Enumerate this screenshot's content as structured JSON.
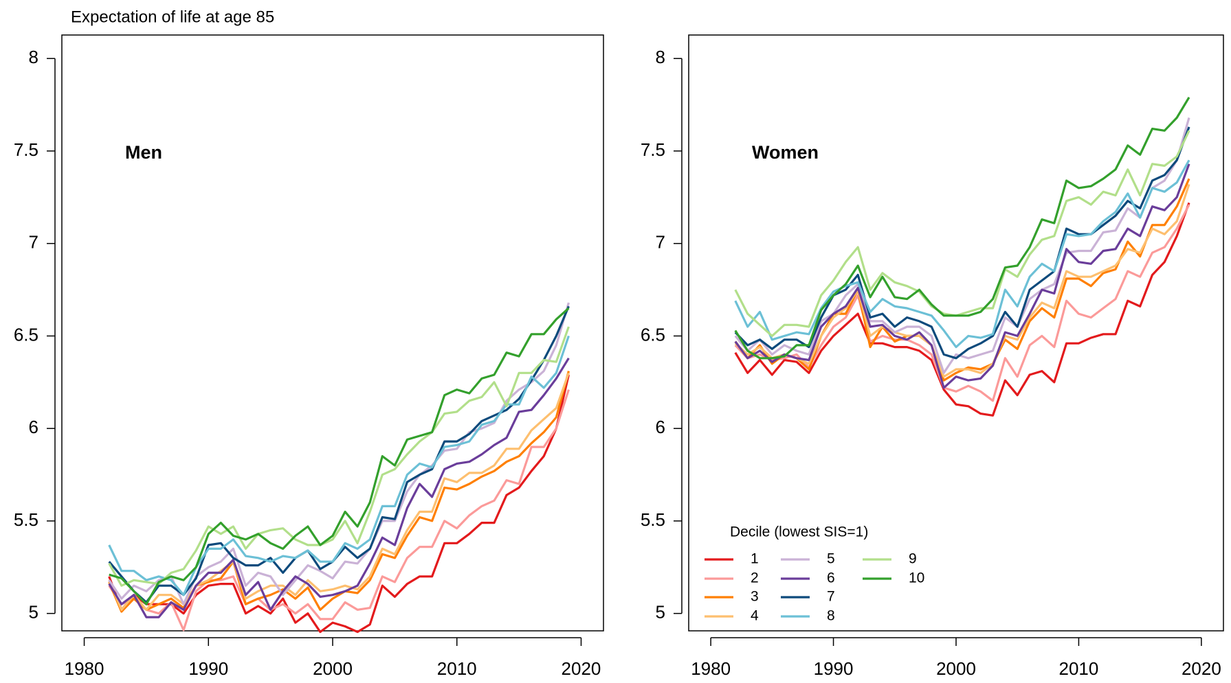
{
  "chart_data": [
    {
      "type": "line",
      "title": "Expectation of life at age 85",
      "panel_label": "Men",
      "x": [
        1982,
        1983,
        1984,
        1985,
        1986,
        1987,
        1988,
        1989,
        1990,
        1991,
        1992,
        1993,
        1994,
        1995,
        1996,
        1997,
        1998,
        1999,
        2000,
        2001,
        2002,
        2003,
        2004,
        2005,
        2006,
        2007,
        2008,
        2009,
        2010,
        2011,
        2012,
        2013,
        2014,
        2015,
        2016,
        2017,
        2018,
        2019
      ],
      "xlim": [
        1978.2,
        2021.8
      ],
      "ylim": [
        4.906,
        8.127
      ],
      "xticks": [
        1980,
        1990,
        2000,
        2010,
        2020
      ],
      "yticks": [
        5,
        5.5,
        6,
        6.5,
        7,
        7.5,
        8
      ],
      "series": [
        {
          "name": "1",
          "color": "#e31a1c",
          "values": [
            5.2,
            5.02,
            5.1,
            5.05,
            5.05,
            5.05,
            5.0,
            5.1,
            5.15,
            5.16,
            5.16,
            5.0,
            5.04,
            5.0,
            5.08,
            4.95,
            5.0,
            4.9,
            4.95,
            4.93,
            4.9,
            4.94,
            5.15,
            5.09,
            5.16,
            5.2,
            5.2,
            5.38,
            5.38,
            5.43,
            5.49,
            5.49,
            5.64,
            5.68,
            5.77,
            5.85,
            6.0,
            6.29
          ]
        },
        {
          "name": "2",
          "color": "#fb9a99",
          "values": [
            5.15,
            5.05,
            5.08,
            5.02,
            5.0,
            5.06,
            4.91,
            5.12,
            5.18,
            5.18,
            5.2,
            5.05,
            5.08,
            5.02,
            5.05,
            5.0,
            5.05,
            4.97,
            4.97,
            5.06,
            5.02,
            5.03,
            5.2,
            5.17,
            5.3,
            5.36,
            5.36,
            5.5,
            5.46,
            5.53,
            5.58,
            5.61,
            5.72,
            5.7,
            5.9,
            5.9,
            6.0,
            6.21
          ]
        },
        {
          "name": "3",
          "color": "#ff7f00",
          "values": [
            5.17,
            5.01,
            5.08,
            5.02,
            5.05,
            5.08,
            5.03,
            5.15,
            5.17,
            5.19,
            5.28,
            5.05,
            5.08,
            5.1,
            5.13,
            5.08,
            5.14,
            5.02,
            5.08,
            5.12,
            5.11,
            5.18,
            5.32,
            5.3,
            5.42,
            5.52,
            5.5,
            5.68,
            5.67,
            5.7,
            5.74,
            5.77,
            5.82,
            5.85,
            5.92,
            5.98,
            6.06,
            6.31
          ]
        },
        {
          "name": "4",
          "color": "#fdbf6f",
          "values": [
            5.18,
            5.02,
            5.1,
            5.02,
            5.1,
            5.1,
            5.05,
            5.15,
            5.18,
            5.23,
            5.28,
            5.08,
            5.12,
            5.15,
            5.15,
            5.1,
            5.18,
            5.12,
            5.13,
            5.15,
            5.13,
            5.2,
            5.35,
            5.32,
            5.45,
            5.55,
            5.55,
            5.73,
            5.71,
            5.76,
            5.76,
            5.8,
            5.89,
            5.89,
            5.99,
            6.05,
            6.11,
            6.3
          ]
        },
        {
          "name": "5",
          "color": "#cab2d6",
          "values": [
            5.18,
            5.08,
            5.15,
            5.12,
            5.18,
            5.2,
            5.05,
            5.2,
            5.25,
            5.28,
            5.35,
            5.15,
            5.22,
            5.2,
            5.1,
            5.18,
            5.26,
            5.23,
            5.19,
            5.28,
            5.27,
            5.35,
            5.5,
            5.5,
            5.66,
            5.75,
            5.8,
            5.88,
            5.89,
            5.98,
            6.0,
            6.03,
            6.15,
            6.21,
            6.25,
            6.31,
            6.45,
            6.68
          ]
        },
        {
          "name": "6",
          "color": "#6a3d9a",
          "values": [
            5.16,
            5.05,
            5.1,
            4.98,
            4.98,
            5.06,
            5.02,
            5.15,
            5.22,
            5.22,
            5.29,
            5.1,
            5.17,
            5.02,
            5.12,
            5.2,
            5.16,
            5.09,
            5.1,
            5.12,
            5.15,
            5.27,
            5.41,
            5.37,
            5.57,
            5.7,
            5.63,
            5.78,
            5.81,
            5.82,
            5.86,
            5.91,
            5.95,
            6.09,
            6.1,
            6.18,
            6.27,
            6.38
          ]
        },
        {
          "name": "7",
          "color": "#0d4a7c",
          "values": [
            5.28,
            5.2,
            5.12,
            5.06,
            5.15,
            5.15,
            5.1,
            5.19,
            5.37,
            5.38,
            5.3,
            5.26,
            5.26,
            5.3,
            5.22,
            5.3,
            5.34,
            5.24,
            5.28,
            5.36,
            5.3,
            5.35,
            5.52,
            5.51,
            5.71,
            5.75,
            5.78,
            5.93,
            5.93,
            5.97,
            6.04,
            6.07,
            6.1,
            6.16,
            6.26,
            6.37,
            6.5,
            6.66
          ]
        },
        {
          "name": "8",
          "color": "#6cc0d6",
          "values": [
            5.37,
            5.23,
            5.23,
            5.18,
            5.2,
            5.18,
            5.1,
            5.25,
            5.35,
            5.35,
            5.4,
            5.31,
            5.3,
            5.28,
            5.31,
            5.3,
            5.34,
            5.28,
            5.28,
            5.38,
            5.35,
            5.4,
            5.58,
            5.58,
            5.75,
            5.81,
            5.79,
            5.9,
            5.91,
            5.93,
            6.02,
            6.04,
            6.13,
            6.13,
            6.28,
            6.22,
            6.3,
            6.5
          ]
        },
        {
          "name": "9",
          "color": "#b2df8a",
          "values": [
            5.27,
            5.15,
            5.18,
            5.17,
            5.16,
            5.22,
            5.24,
            5.34,
            5.47,
            5.43,
            5.47,
            5.35,
            5.43,
            5.45,
            5.46,
            5.4,
            5.37,
            5.37,
            5.4,
            5.5,
            5.38,
            5.55,
            5.75,
            5.78,
            5.86,
            5.93,
            5.98,
            6.08,
            6.09,
            6.15,
            6.17,
            6.25,
            6.12,
            6.3,
            6.3,
            6.37,
            6.36,
            6.55
          ]
        },
        {
          "name": "10",
          "color": "#33a02c",
          "values": [
            5.21,
            5.19,
            5.12,
            5.05,
            5.17,
            5.2,
            5.18,
            5.25,
            5.43,
            5.49,
            5.42,
            5.4,
            5.43,
            5.38,
            5.35,
            5.42,
            5.47,
            5.37,
            5.42,
            5.55,
            5.47,
            5.6,
            5.85,
            5.8,
            5.94,
            5.96,
            5.98,
            6.18,
            6.21,
            6.19,
            6.27,
            6.29,
            6.41,
            6.39,
            6.51,
            6.51,
            6.59,
            6.65
          ]
        }
      ]
    },
    {
      "type": "line",
      "panel_label": "Women",
      "legend_title": "Decile (lowest SIS=1)",
      "legend": "bottom-left",
      "x": [
        1982,
        1983,
        1984,
        1985,
        1986,
        1987,
        1988,
        1989,
        1990,
        1991,
        1992,
        1993,
        1994,
        1995,
        1996,
        1997,
        1998,
        1999,
        2000,
        2001,
        2002,
        2003,
        2004,
        2005,
        2006,
        2007,
        2008,
        2009,
        2010,
        2011,
        2012,
        2013,
        2014,
        2015,
        2016,
        2017,
        2018,
        2019
      ],
      "xlim": [
        1978.2,
        2021.8
      ],
      "ylim": [
        4.906,
        8.127
      ],
      "xticks": [
        1980,
        1990,
        2000,
        2010,
        2020
      ],
      "yticks": [
        5,
        5.5,
        6,
        6.5,
        7,
        7.5,
        8
      ],
      "series": [
        {
          "name": "1",
          "color": "#e31a1c",
          "values": [
            6.41,
            6.3,
            6.37,
            6.29,
            6.37,
            6.36,
            6.3,
            6.42,
            6.5,
            6.56,
            6.62,
            6.46,
            6.46,
            6.44,
            6.44,
            6.42,
            6.37,
            6.21,
            6.13,
            6.12,
            6.08,
            6.07,
            6.26,
            6.18,
            6.29,
            6.31,
            6.25,
            6.46,
            6.46,
            6.49,
            6.51,
            6.51,
            6.69,
            6.66,
            6.83,
            6.9,
            7.04,
            7.22
          ]
        },
        {
          "name": "2",
          "color": "#fb9a99",
          "values": [
            6.45,
            6.38,
            6.4,
            6.37,
            6.38,
            6.4,
            6.33,
            6.45,
            6.55,
            6.6,
            6.72,
            6.47,
            6.5,
            6.48,
            6.48,
            6.45,
            6.4,
            6.22,
            6.2,
            6.23,
            6.2,
            6.15,
            6.38,
            6.28,
            6.45,
            6.5,
            6.44,
            6.69,
            6.62,
            6.6,
            6.65,
            6.7,
            6.85,
            6.82,
            6.95,
            6.98,
            7.08,
            7.21
          ]
        },
        {
          "name": "3",
          "color": "#ff7f00",
          "values": [
            6.47,
            6.38,
            6.45,
            6.35,
            6.4,
            6.38,
            6.32,
            6.5,
            6.62,
            6.62,
            6.75,
            6.44,
            6.55,
            6.47,
            6.5,
            6.5,
            6.45,
            6.26,
            6.3,
            6.33,
            6.32,
            6.35,
            6.48,
            6.43,
            6.58,
            6.65,
            6.6,
            6.81,
            6.81,
            6.77,
            6.84,
            6.86,
            7.01,
            6.93,
            7.1,
            7.1,
            7.2,
            7.35
          ]
        },
        {
          "name": "4",
          "color": "#fdbf6f",
          "values": [
            6.46,
            6.4,
            6.44,
            6.38,
            6.4,
            6.38,
            6.35,
            6.5,
            6.6,
            6.65,
            6.75,
            6.5,
            6.55,
            6.52,
            6.5,
            6.5,
            6.45,
            6.28,
            6.32,
            6.32,
            6.3,
            6.35,
            6.5,
            6.48,
            6.6,
            6.68,
            6.65,
            6.85,
            6.82,
            6.82,
            6.85,
            6.88,
            6.97,
            6.95,
            7.08,
            7.05,
            7.12,
            7.32
          ]
        },
        {
          "name": "5",
          "color": "#cab2d6",
          "values": [
            6.5,
            6.42,
            6.48,
            6.4,
            6.45,
            6.42,
            6.4,
            6.58,
            6.62,
            6.72,
            6.78,
            6.58,
            6.58,
            6.52,
            6.55,
            6.55,
            6.5,
            6.3,
            6.4,
            6.38,
            6.4,
            6.42,
            6.6,
            6.55,
            6.7,
            6.75,
            6.78,
            6.95,
            6.96,
            6.96,
            7.06,
            7.07,
            7.19,
            7.14,
            7.3,
            7.34,
            7.45,
            7.68
          ]
        },
        {
          "name": "6",
          "color": "#6a3d9a",
          "values": [
            6.47,
            6.38,
            6.42,
            6.36,
            6.4,
            6.38,
            6.37,
            6.55,
            6.62,
            6.66,
            6.76,
            6.55,
            6.56,
            6.5,
            6.48,
            6.52,
            6.45,
            6.22,
            6.28,
            6.26,
            6.27,
            6.34,
            6.52,
            6.5,
            6.62,
            6.75,
            6.73,
            6.97,
            6.9,
            6.89,
            6.96,
            6.97,
            7.08,
            7.04,
            7.2,
            7.18,
            7.25,
            7.43
          ]
        },
        {
          "name": "7",
          "color": "#0d4a7c",
          "values": [
            6.52,
            6.45,
            6.48,
            6.43,
            6.48,
            6.48,
            6.44,
            6.6,
            6.72,
            6.75,
            6.83,
            6.6,
            6.62,
            6.55,
            6.6,
            6.58,
            6.55,
            6.4,
            6.38,
            6.43,
            6.46,
            6.5,
            6.63,
            6.55,
            6.75,
            6.8,
            6.85,
            7.08,
            7.05,
            7.05,
            7.1,
            7.15,
            7.23,
            7.19,
            7.34,
            7.37,
            7.45,
            7.63
          ]
        },
        {
          "name": "8",
          "color": "#6cc0d6",
          "values": [
            6.69,
            6.55,
            6.63,
            6.48,
            6.5,
            6.52,
            6.51,
            6.65,
            6.74,
            6.77,
            6.79,
            6.63,
            6.7,
            6.66,
            6.65,
            6.63,
            6.61,
            6.53,
            6.44,
            6.5,
            6.49,
            6.51,
            6.75,
            6.66,
            6.82,
            6.89,
            6.85,
            7.05,
            7.04,
            7.05,
            7.12,
            7.17,
            7.27,
            7.14,
            7.3,
            7.28,
            7.33,
            7.45
          ]
        },
        {
          "name": "9",
          "color": "#b2df8a",
          "values": [
            6.75,
            6.62,
            6.56,
            6.5,
            6.56,
            6.56,
            6.55,
            6.72,
            6.8,
            6.9,
            6.98,
            6.75,
            6.84,
            6.79,
            6.77,
            6.74,
            6.66,
            6.62,
            6.61,
            6.63,
            6.65,
            6.65,
            6.86,
            6.82,
            6.94,
            7.02,
            7.04,
            7.23,
            7.25,
            7.21,
            7.28,
            7.26,
            7.4,
            7.26,
            7.43,
            7.42,
            7.47,
            7.61
          ]
        },
        {
          "name": "10",
          "color": "#33a02c",
          "values": [
            6.53,
            6.42,
            6.38,
            6.38,
            6.39,
            6.45,
            6.45,
            6.64,
            6.72,
            6.78,
            6.88,
            6.71,
            6.82,
            6.71,
            6.7,
            6.75,
            6.67,
            6.61,
            6.61,
            6.61,
            6.63,
            6.7,
            6.87,
            6.88,
            6.98,
            7.13,
            7.11,
            7.34,
            7.3,
            7.31,
            7.35,
            7.4,
            7.53,
            7.48,
            7.62,
            7.61,
            7.68,
            7.79
          ]
        }
      ]
    }
  ]
}
